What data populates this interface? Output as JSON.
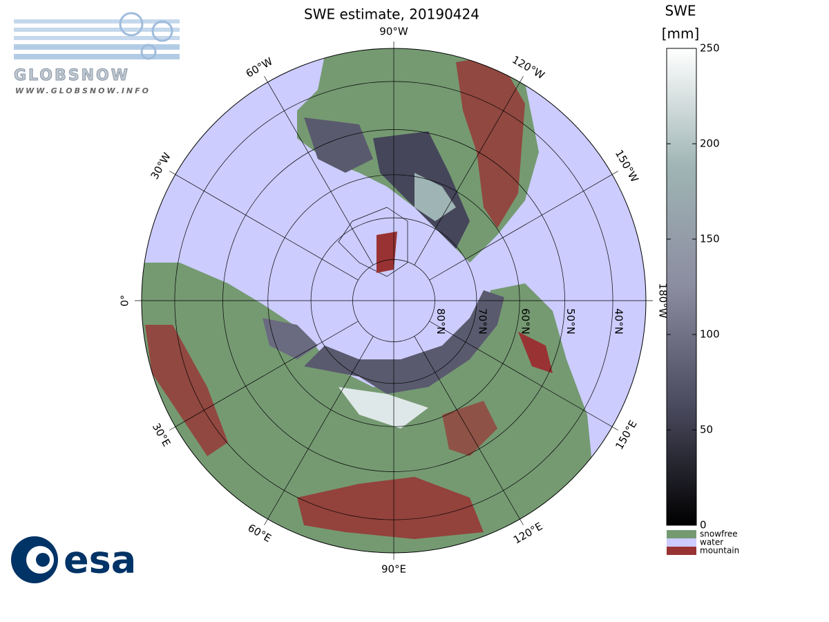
{
  "map": {
    "title": "SWE estimate, 20190424",
    "logo_top": {
      "name": "GLOBSNOW",
      "url": "WWW.GLOBSNOW.INFO"
    },
    "logo_bottom": "esa",
    "longitude_labels": [
      {
        "value": -90,
        "label": "90°W"
      },
      {
        "value": -120,
        "label": "120°W"
      },
      {
        "value": -150,
        "label": "150°W"
      },
      {
        "value": -180,
        "label": "180°W"
      },
      {
        "value": 150,
        "label": "150°E"
      },
      {
        "value": 120,
        "label": "120°E"
      },
      {
        "value": 90,
        "label": "90°E"
      },
      {
        "value": 60,
        "label": "60°E"
      },
      {
        "value": 30,
        "label": "30°E"
      },
      {
        "value": 0,
        "label": "0°"
      },
      {
        "value": -30,
        "label": "30°W"
      },
      {
        "value": -60,
        "label": "60°W"
      }
    ],
    "latitude_labels": [
      {
        "value": 80,
        "label": "80°N"
      },
      {
        "value": 70,
        "label": "70°N"
      },
      {
        "value": 60,
        "label": "60°N"
      },
      {
        "value": 50,
        "label": "50°N"
      },
      {
        "value": 40,
        "label": "40°N"
      }
    ],
    "colorbar": {
      "title": [
        "SWE",
        "[mm]"
      ],
      "range": [
        0,
        250
      ],
      "ticks": [
        0,
        50,
        100,
        150,
        200,
        250
      ],
      "colors": [
        "#000000",
        "#4a4a5e",
        "#8b8ca0",
        "#9fb4b4",
        "#ffffff"
      ]
    },
    "legend": [
      {
        "name": "snowfree",
        "color": "#759a72"
      },
      {
        "name": "water",
        "color": "#ccccff"
      },
      {
        "name": "mountain",
        "color": "#993333"
      }
    ]
  }
}
